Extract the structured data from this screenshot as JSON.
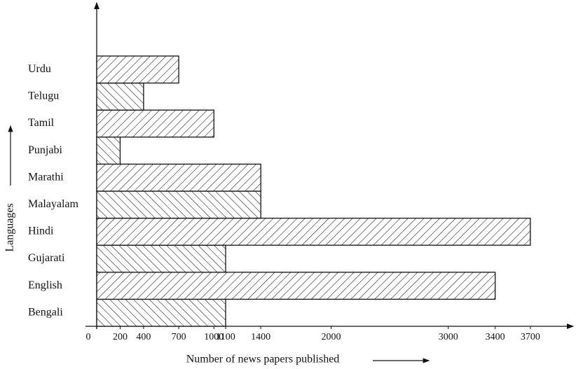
{
  "chart_data": {
    "type": "bar",
    "orientation": "horizontal",
    "x_label": "Number of news papers published",
    "y_label": "Languages",
    "categories": [
      "Bengali",
      "English",
      "Gujarati",
      "Hindi",
      "Malayalam",
      "Marathi",
      "Punjabi",
      "Tamil",
      "Telugu",
      "Urdu"
    ],
    "values": [
      1100,
      3400,
      1100,
      3700,
      1400,
      1400,
      200,
      1000,
      400,
      700
    ],
    "xlim": [
      0,
      4000
    ],
    "xticks": [
      0,
      200,
      400,
      700,
      1000,
      1100,
      1400,
      2000,
      3000,
      3400,
      3700
    ],
    "color": "#111111",
    "grid": false
  }
}
